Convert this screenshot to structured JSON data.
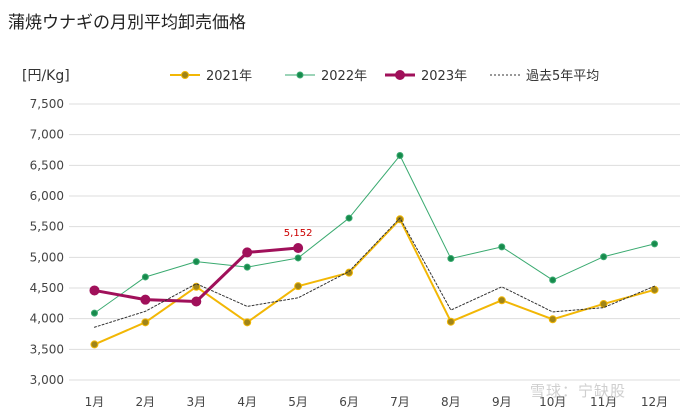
{
  "title": "蒲焼ウナギの月別平均卸売価格",
  "unit": "[円/Kg]",
  "watermark": "雪球：宁缺股",
  "chart_data": {
    "type": "line",
    "categories": [
      "1月",
      "2月",
      "3月",
      "4月",
      "5月",
      "6月",
      "7月",
      "8月",
      "9月",
      "10月",
      "11月",
      "12月"
    ],
    "ylim": [
      3000,
      7500
    ],
    "yticks": [
      3000,
      3500,
      4000,
      4500,
      5000,
      5500,
      6000,
      6500,
      7000,
      7500
    ],
    "ytick_labels": [
      "3,000",
      "3,500",
      "4,000",
      "4,500",
      "5,000",
      "5,500",
      "6,000",
      "6,500",
      "7,000",
      "7,500"
    ],
    "grid": true,
    "legend_position": "top",
    "series": [
      {
        "name": "2021年",
        "color": "#f2b705",
        "marker_color": "#a08418",
        "style": "solid",
        "width": 2,
        "marker": 3.5,
        "values": [
          3580,
          3940,
          4520,
          3940,
          4530,
          4750,
          5620,
          3950,
          4300,
          3990,
          4240,
          4470
        ]
      },
      {
        "name": "2022年",
        "color": "#3aaa70",
        "marker_color": "#178a4c",
        "style": "solid",
        "width": 1,
        "marker": 3,
        "values": [
          4090,
          4680,
          4930,
          4840,
          4990,
          5640,
          6660,
          4980,
          5170,
          4630,
          5010,
          5220
        ]
      },
      {
        "name": "2023年",
        "color": "#a0105a",
        "marker_color": "#a0105a",
        "style": "solid",
        "width": 3,
        "marker": 4.5,
        "values": [
          4460,
          4310,
          4280,
          5080,
          5152,
          null,
          null,
          null,
          null,
          null,
          null,
          null
        ]
      },
      {
        "name": "過去5年平均",
        "color": "#333333",
        "marker_color": "#333333",
        "style": "dotted",
        "width": 1,
        "marker": 0,
        "values": [
          3860,
          4120,
          4570,
          4200,
          4340,
          4770,
          5640,
          4140,
          4520,
          4110,
          4180,
          4530
        ]
      }
    ],
    "annotations": [
      {
        "series": "2023年",
        "index": 4,
        "text": "5,152"
      }
    ]
  }
}
